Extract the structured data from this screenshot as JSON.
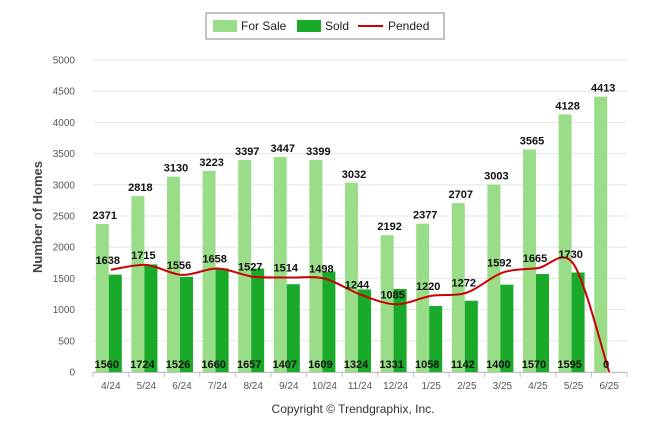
{
  "chart_data": {
    "type": "bar",
    "title": "",
    "xlabel": "",
    "ylabel": "Number of Homes",
    "ylim": [
      0,
      5000
    ],
    "yticks": [
      0,
      500,
      1000,
      1500,
      2000,
      2500,
      3000,
      3500,
      4000,
      4500,
      5000
    ],
    "grid": true,
    "legend_position": "top-center",
    "categories": [
      "4/24",
      "5/24",
      "6/24",
      "7/24",
      "8/24",
      "9/24",
      "10/24",
      "11/24",
      "12/24",
      "1/25",
      "2/25",
      "3/25",
      "4/25",
      "5/25",
      "6/25"
    ],
    "series": [
      {
        "name": "For Sale",
        "type": "bar",
        "color": "#99dd88",
        "values": [
          2371,
          2818,
          3130,
          3223,
          3397,
          3447,
          3399,
          3032,
          2192,
          2377,
          2707,
          3003,
          3565,
          4128,
          4413
        ]
      },
      {
        "name": "Sold",
        "type": "bar",
        "color": "#1aaa2a",
        "values": [
          1560,
          1724,
          1526,
          1660,
          1657,
          1407,
          1609,
          1324,
          1331,
          1058,
          1142,
          1400,
          1570,
          1595,
          0
        ]
      },
      {
        "name": "Pended",
        "type": "line",
        "color": "#cc0000",
        "values": [
          1638,
          1715,
          1556,
          1658,
          1527,
          1514,
          1498,
          1244,
          1085,
          1220,
          1272,
          1592,
          1665,
          1730,
          0
        ]
      }
    ],
    "credit": "Copyright © Trendgraphix, Inc."
  }
}
